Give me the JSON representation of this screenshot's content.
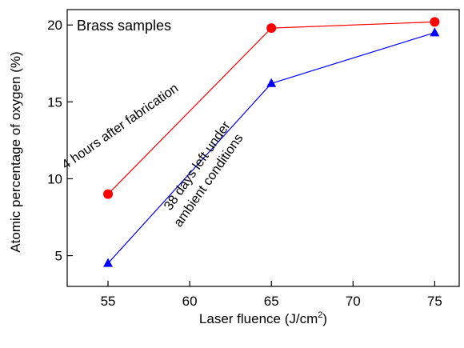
{
  "chart_data": {
    "type": "line",
    "title": "",
    "panel_label": "Brass samples",
    "xlabel_main": "Laser fluence (J/cm",
    "xlabel_sup": "2",
    "xlabel_close": ")",
    "ylabel": "Atomic percentage of oxygen (%)",
    "xlim": [
      52.5,
      76.5
    ],
    "ylim": [
      3,
      21
    ],
    "x_ticks": [
      55,
      60,
      65,
      70,
      75
    ],
    "y_ticks": [
      5,
      10,
      15,
      20
    ],
    "grid": false,
    "series": [
      {
        "x": [
          55,
          65,
          75
        ],
        "y": [
          9.0,
          19.8,
          20.2
        ],
        "color": "#ff0000",
        "marker": "circle",
        "annotation": [
          "4 hours after fabrication"
        ]
      },
      {
        "x": [
          55,
          65,
          75
        ],
        "y": [
          4.5,
          16.2,
          19.5
        ],
        "color": "#0000ff",
        "marker": "triangle",
        "annotation": [
          "38 days left under",
          "ambient conditions"
        ]
      }
    ]
  }
}
